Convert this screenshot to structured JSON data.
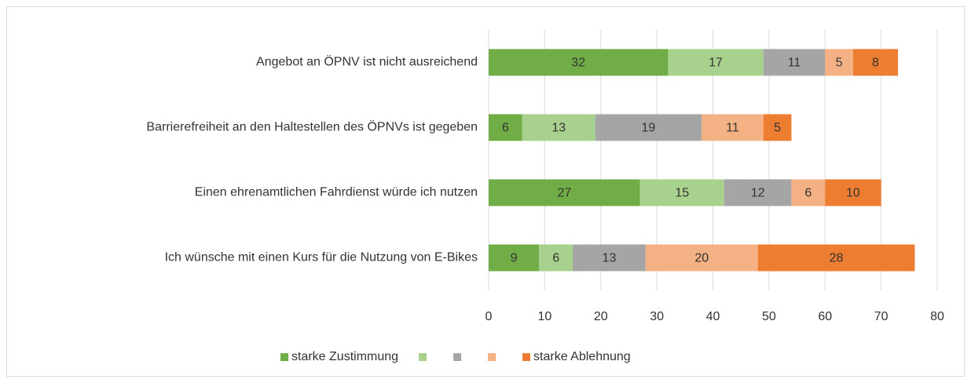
{
  "chart_data": {
    "type": "stacked-bar",
    "orientation": "horizontal",
    "categories": [
      "Angebot an ÖPNV ist nicht ausreichend",
      "Barrierefreiheit an den Haltestellen des ÖPNVs ist gegeben",
      "Einen ehrenamtlichen Fahrdienst würde ich nutzen",
      "Ich wünsche mit einen Kurs für die Nutzung von E-Bikes"
    ],
    "series": [
      {
        "name": "starke Zustimmung",
        "color": "#70ad47",
        "values": [
          32,
          6,
          27,
          9
        ]
      },
      {
        "name": null,
        "color": "#a9d18e",
        "values": [
          17,
          13,
          15,
          6
        ]
      },
      {
        "name": null,
        "color": "#a5a5a5",
        "values": [
          11,
          19,
          12,
          13
        ]
      },
      {
        "name": null,
        "color": "#f4b183",
        "values": [
          5,
          11,
          6,
          20
        ]
      },
      {
        "name": "starke Ablehnung",
        "color": "#ed7d31",
        "values": [
          8,
          5,
          10,
          28
        ]
      }
    ],
    "xlim": [
      0,
      80
    ],
    "xticks": [
      0,
      10,
      20,
      30,
      40,
      50,
      60,
      70,
      80
    ],
    "grid": true,
    "legend": "bottom"
  }
}
